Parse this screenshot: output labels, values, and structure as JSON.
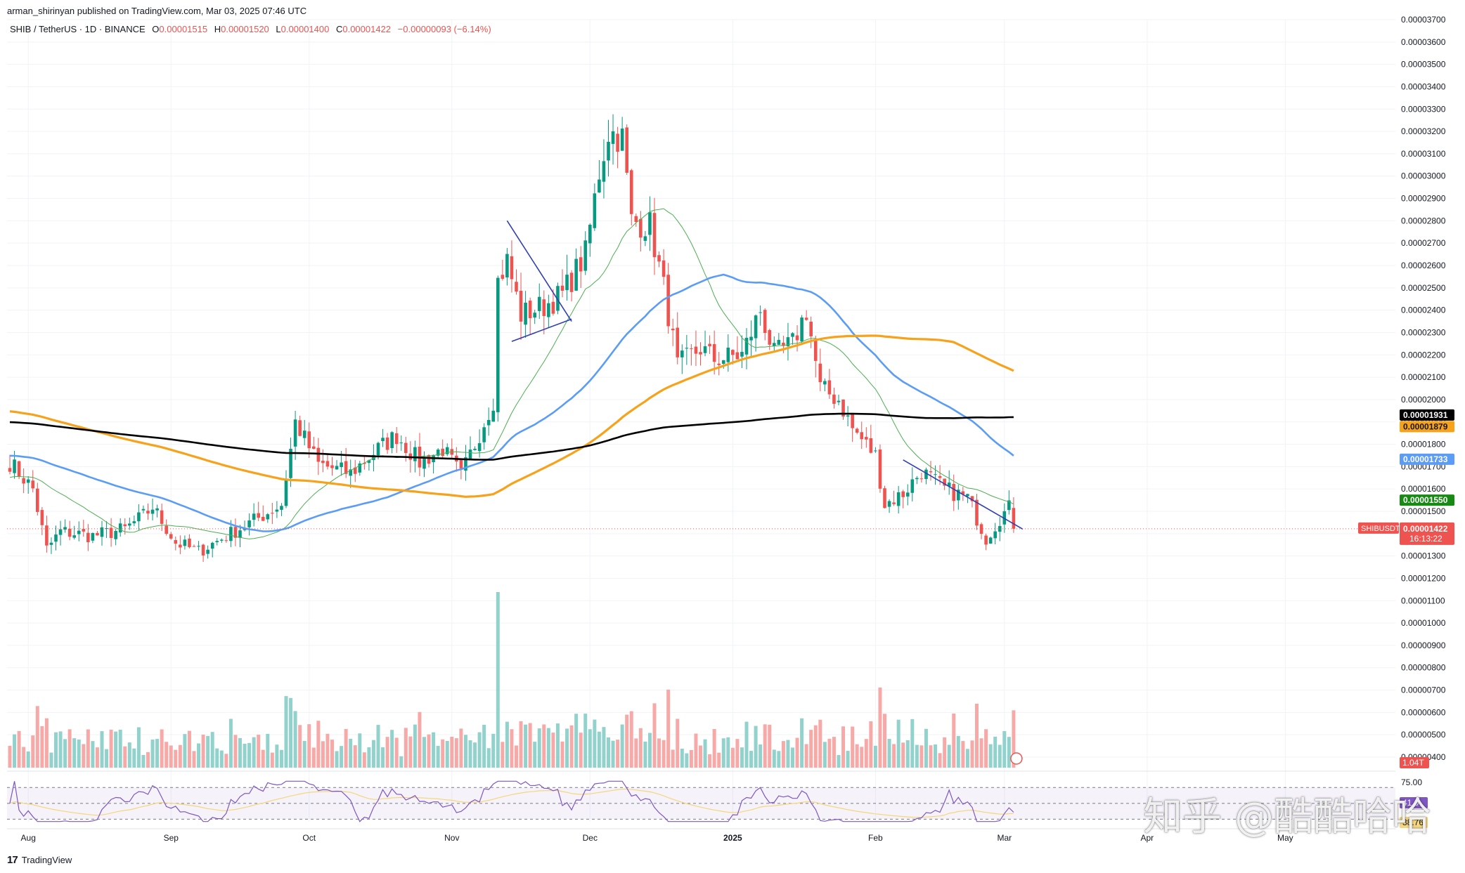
{
  "header": {
    "publisher": "arman_shirinyan published on TradingView.com, Mar 03, 2025 07:46 UTC"
  },
  "legend": {
    "symbol": "SHIB / TetherUS · 1D · BINANCE",
    "open_label": "O",
    "open": "0.00001515",
    "high_label": "H",
    "high": "0.00001520",
    "low_label": "L",
    "low": "0.00001400",
    "close_label": "C",
    "close": "0.00001422",
    "change": "−0.00000093 (−6.14%)"
  },
  "price_tags": {
    "ma200": "0.00001931",
    "ma100": "0.00001879",
    "ma50": "0.00001733",
    "ma20": "0.00001550",
    "last": "0.00001422",
    "countdown": "16:13:22",
    "symbol_label": "SHIBUSDT",
    "volume": "1.04T"
  },
  "rsi_labels": {
    "top": "75.00",
    "mid_a": "41.0",
    "mid_b": "38.76"
  },
  "footer": {
    "brand": "TradingView"
  },
  "watermark": "知乎 @酷酷哈哈",
  "colors": {
    "up": "#089981",
    "down": "#ef5350",
    "vol_up": "#92d2cc",
    "vol_down": "#f7a9a7",
    "ma20": "#4caf50",
    "ma50": "#5b9cf6",
    "ma100": "#f7a21b",
    "ma200": "#000000",
    "trend": "#2f3eb5"
  },
  "chart_data": {
    "type": "candlestick",
    "y_axis_ticks": [
      "0.00003700",
      "0.00003600",
      "0.00003500",
      "0.00003400",
      "0.00003300",
      "0.00003200",
      "0.00003100",
      "0.00003000",
      "0.00002900",
      "0.00002800",
      "0.00002700",
      "0.00002600",
      "0.00002500",
      "0.00002400",
      "0.00002300",
      "0.00002200",
      "0.00002100",
      "0.00002000",
      "0.00001900",
      "0.00001800",
      "0.00001700",
      "0.00001600",
      "0.00001500",
      "0.00001400",
      "0.00001300",
      "0.00001200",
      "0.00001100",
      "0.00001000",
      "0.00000900",
      "0.00000800",
      "0.00000700",
      "0.00000600",
      "0.00000500",
      "0.00000400"
    ],
    "ylim": [
      4e-06,
      3.7e-05
    ],
    "x_axis_ticks": [
      "Aug",
      "Sep",
      "Oct",
      "Nov",
      "Dec",
      "2025",
      "Feb",
      "Mar",
      "Apr",
      "May"
    ],
    "close_keypoints": [
      [
        "Jul 28",
        1.72e-05
      ],
      [
        "Aug 2",
        1.6e-05
      ],
      [
        "Aug 5",
        1.33e-05
      ],
      [
        "Aug 8",
        1.41e-05
      ],
      [
        "Aug 15",
        1.39e-05
      ],
      [
        "Aug 22",
        1.42e-05
      ],
      [
        "Aug 26",
        1.48e-05
      ],
      [
        "Aug 28",
        1.52e-05
      ],
      [
        "Sep 2",
        1.36e-05
      ],
      [
        "Sep 7",
        1.32e-05
      ],
      [
        "Sep 13",
        1.39e-05
      ],
      [
        "Sep 20",
        1.47e-05
      ],
      [
        "Sep 25",
        1.53e-05
      ],
      [
        "Sep 28",
        1.9e-05
      ],
      [
        "Oct 3",
        1.71e-05
      ],
      [
        "Oct 10",
        1.67e-05
      ],
      [
        "Oct 16",
        1.78e-05
      ],
      [
        "Oct 20",
        1.84e-05
      ],
      [
        "Oct 25",
        1.72e-05
      ],
      [
        "Oct 30",
        1.78e-05
      ],
      [
        "Nov 3",
        1.66e-05
      ],
      [
        "Nov 6",
        1.8e-05
      ],
      [
        "Nov 10",
        2e-05
      ],
      [
        "Nov 11",
        2.53e-05
      ],
      [
        "Nov 13",
        2.62e-05
      ],
      [
        "Nov 16",
        2.38e-05
      ],
      [
        "Nov 21",
        2.42e-05
      ],
      [
        "Nov 25",
        2.47e-05
      ],
      [
        "Nov 30",
        2.65e-05
      ],
      [
        "Dec 3",
        3.02e-05
      ],
      [
        "Dec 5",
        3.2e-05
      ],
      [
        "Dec 8",
        3.17e-05
      ],
      [
        "Dec 10",
        2.8e-05
      ],
      [
        "Dec 14",
        2.78e-05
      ],
      [
        "Dec 17",
        2.5e-05
      ],
      [
        "Dec 20",
        2.15e-05
      ],
      [
        "Dec 25",
        2.23e-05
      ],
      [
        "Dec 28",
        2.18e-05
      ],
      [
        "Jan 3",
        2.2e-05
      ],
      [
        "Jan 7",
        2.4e-05
      ],
      [
        "Jan 10",
        2.2e-05
      ],
      [
        "Jan 14",
        2.25e-05
      ],
      [
        "Jan 17",
        2.4e-05
      ],
      [
        "Jan 20",
        2.05e-05
      ],
      [
        "Jan 24",
        2e-05
      ],
      [
        "Jan 27",
        1.87e-05
      ],
      [
        "Feb 1",
        1.75e-05
      ],
      [
        "Feb 3",
        1.53e-05
      ],
      [
        "Feb 7",
        1.58e-05
      ],
      [
        "Feb 11",
        1.68e-05
      ],
      [
        "Feb 16",
        1.6e-05
      ],
      [
        "Feb 21",
        1.56e-05
      ],
      [
        "Feb 25",
        1.38e-05
      ],
      [
        "Feb 28",
        1.47e-05
      ],
      [
        "Mar 2",
        1.515e-05
      ],
      [
        "Mar 3",
        1.422e-05
      ]
    ],
    "moving_averages": {
      "ma20_last": 1.55e-05,
      "ma50_last": 1.733e-05,
      "ma100_last": 1.879e-05,
      "ma200_last": 1.931e-05
    },
    "volume_last": "1.04T",
    "rsi": {
      "ylim": [
        25,
        80
      ],
      "band": [
        30,
        70
      ],
      "last": 38.76
    },
    "grid": true,
    "legend_position": "top-left"
  }
}
